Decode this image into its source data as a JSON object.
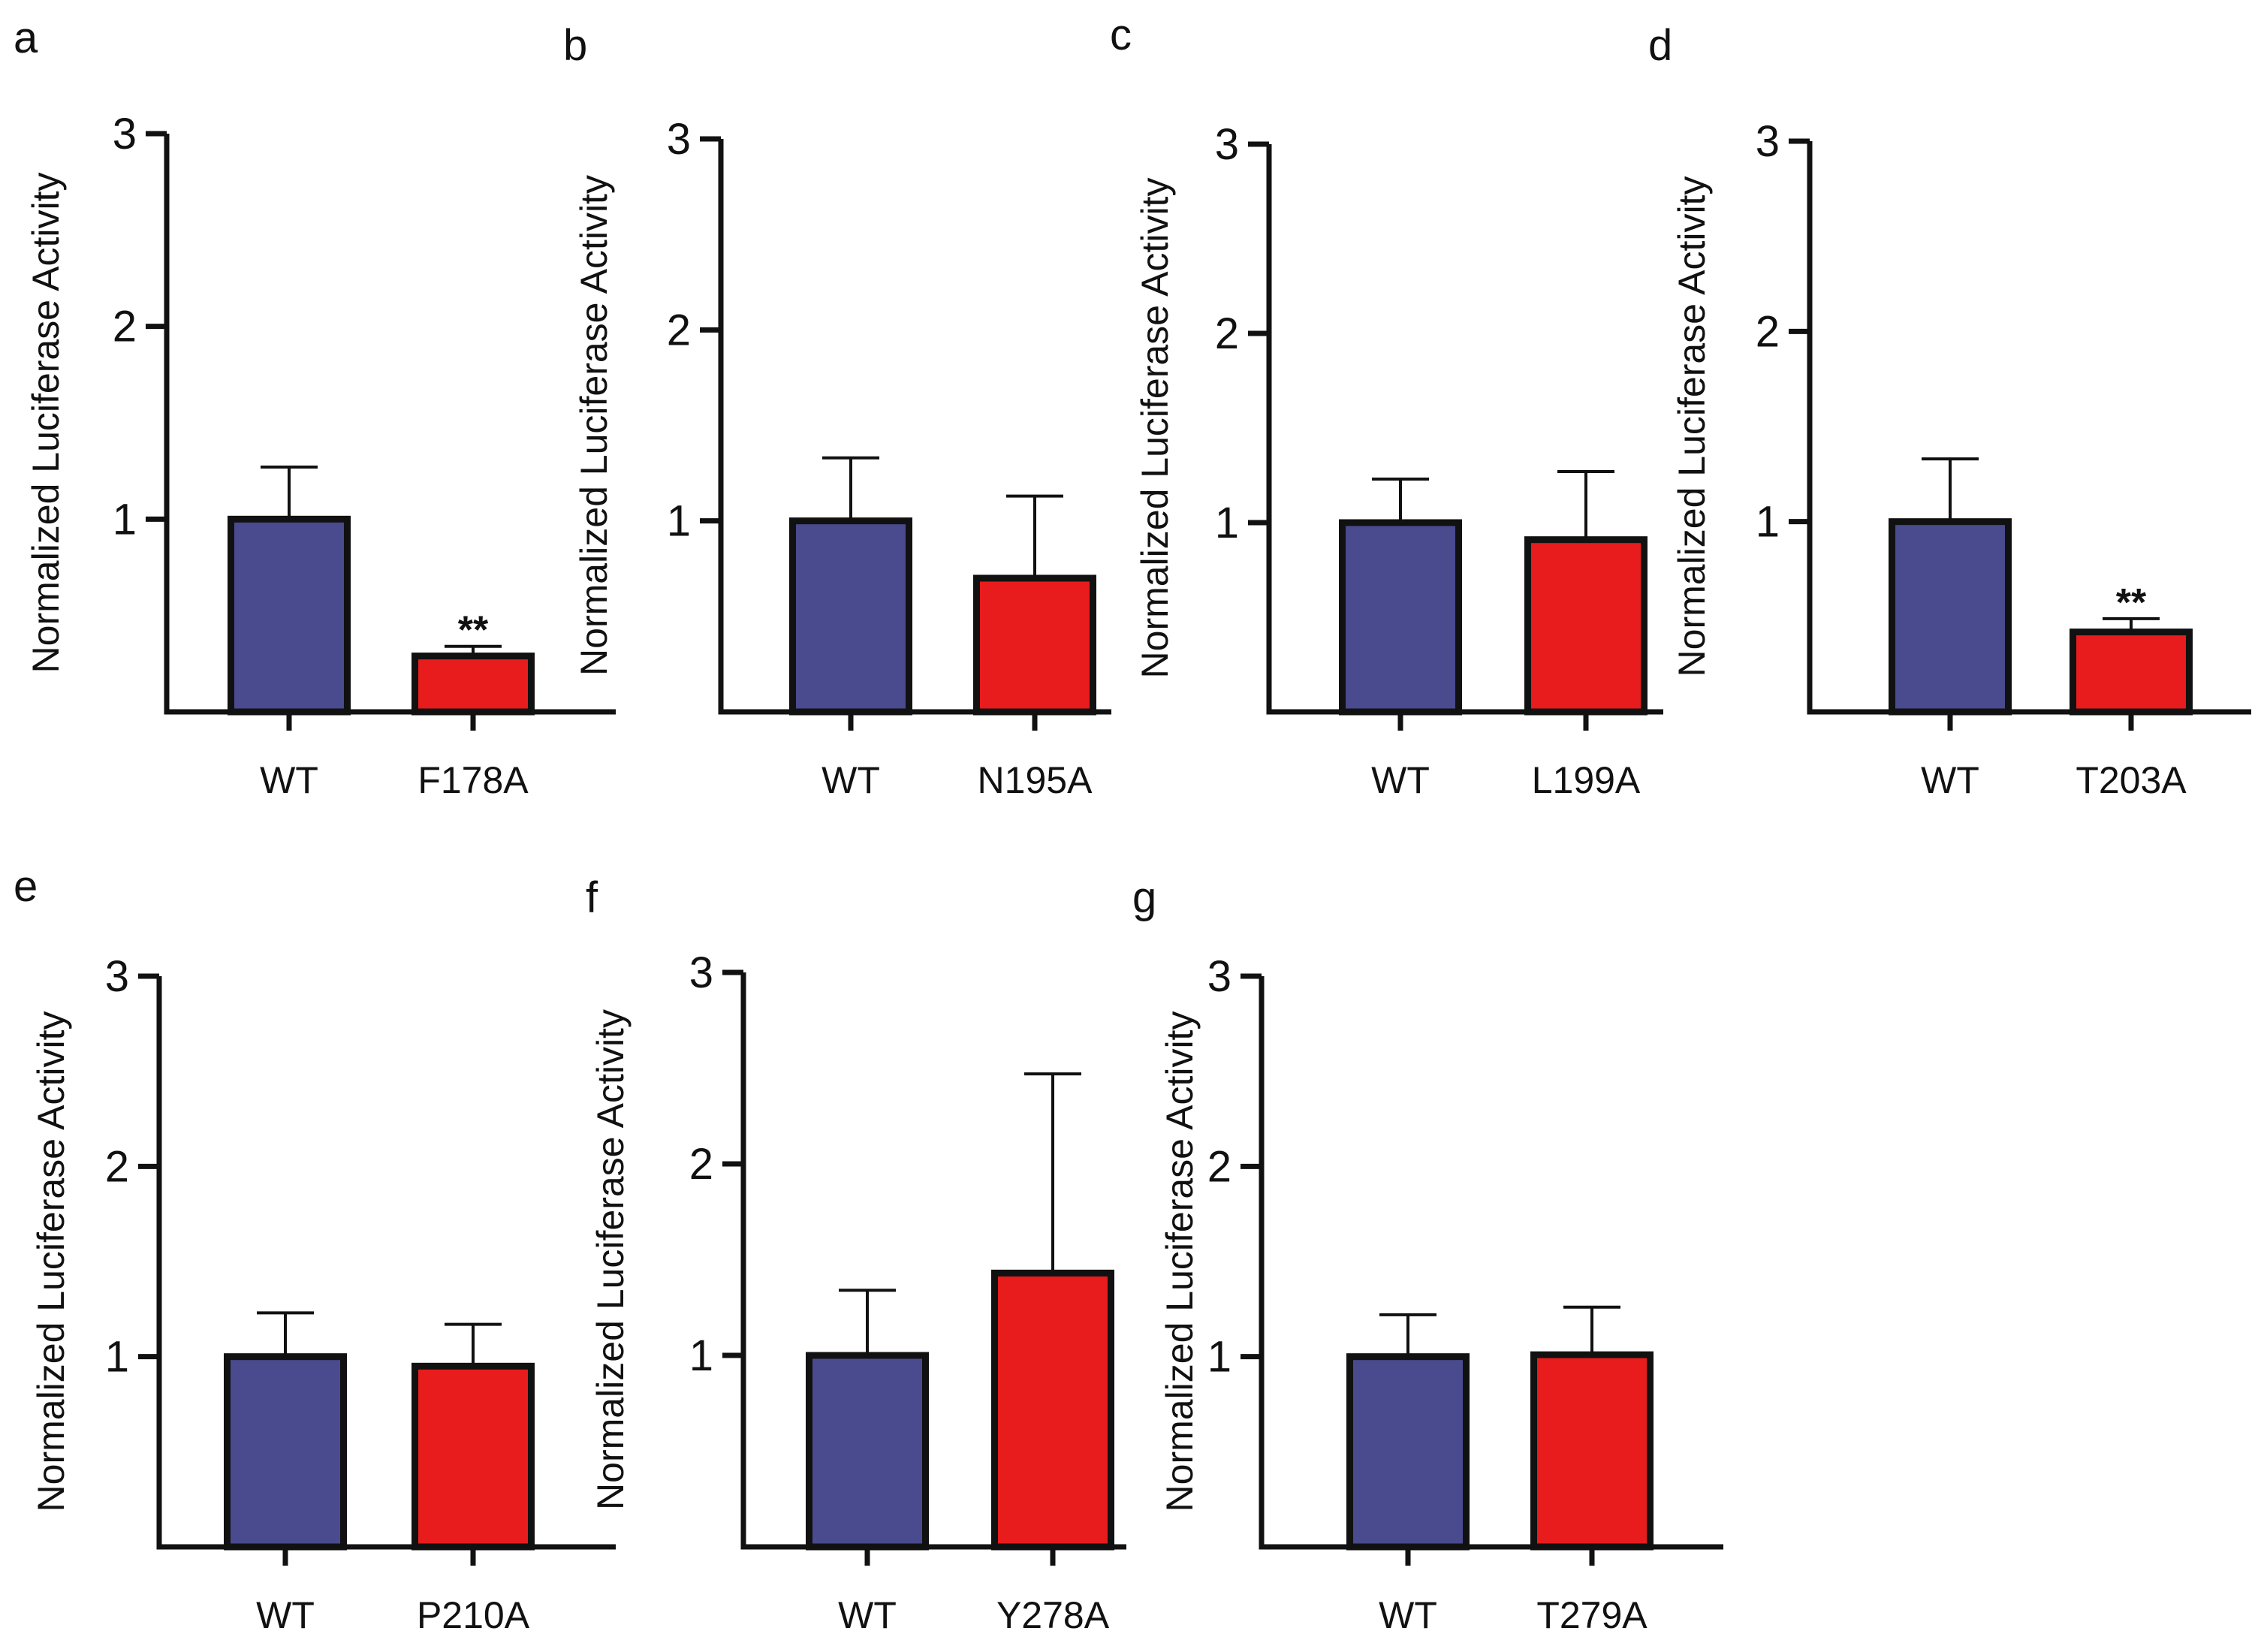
{
  "chart_data": [
    {
      "type": "bar",
      "panel": "a",
      "categories": [
        "WT",
        "F178A"
      ],
      "values": [
        1.0,
        0.29
      ],
      "errors": [
        0.27,
        0.05
      ],
      "significance": [
        "",
        "**"
      ],
      "ylabel": "Normalized Luciferase Activity",
      "yticks": [
        "1",
        "2",
        "3"
      ],
      "ylim": [
        0,
        3
      ],
      "colors": [
        "#4a4a8f",
        "#e81c1c"
      ]
    },
    {
      "type": "bar",
      "panel": "b",
      "categories": [
        "WT",
        "N195A"
      ],
      "values": [
        1.0,
        0.7
      ],
      "errors": [
        0.33,
        0.43
      ],
      "significance": [
        "",
        ""
      ],
      "ylabel": "Normalized Luciferase Activity",
      "yticks": [
        "1",
        "2",
        "3"
      ],
      "ylim": [
        0,
        3
      ],
      "colors": [
        "#4a4a8f",
        "#e81c1c"
      ]
    },
    {
      "type": "bar",
      "panel": "c",
      "categories": [
        "WT",
        "L199A"
      ],
      "values": [
        1.0,
        0.91
      ],
      "errors": [
        0.23,
        0.36
      ],
      "significance": [
        "",
        ""
      ],
      "ylabel": "Normalized Luciferase Activity",
      "yticks": [
        "1",
        "2",
        "3"
      ],
      "ylim": [
        0,
        3
      ],
      "colors": [
        "#4a4a8f",
        "#e81c1c"
      ]
    },
    {
      "type": "bar",
      "panel": "d",
      "categories": [
        "WT",
        "T203A"
      ],
      "values": [
        1.0,
        0.42
      ],
      "errors": [
        0.33,
        0.07
      ],
      "significance": [
        "",
        "**"
      ],
      "ylabel": "Normalized Luciferase Activity",
      "yticks": [
        "1",
        "2",
        "3"
      ],
      "ylim": [
        0,
        3
      ],
      "colors": [
        "#4a4a8f",
        "#e81c1c"
      ]
    },
    {
      "type": "bar",
      "panel": "e",
      "categories": [
        "WT",
        "P210A"
      ],
      "values": [
        1.0,
        0.95
      ],
      "errors": [
        0.23,
        0.22
      ],
      "significance": [
        "",
        ""
      ],
      "ylabel": "Normalized Luciferase Activity",
      "yticks": [
        "1",
        "2",
        "3"
      ],
      "ylim": [
        0,
        3
      ],
      "colors": [
        "#4a4a8f",
        "#e81c1c"
      ]
    },
    {
      "type": "bar",
      "panel": "f",
      "categories": [
        "WT",
        "Y278A"
      ],
      "values": [
        1.0,
        1.43
      ],
      "errors": [
        0.34,
        1.04
      ],
      "significance": [
        "",
        ""
      ],
      "ylabel": "Normalized Luciferase Activity",
      "yticks": [
        "1",
        "2",
        "3"
      ],
      "ylim": [
        0,
        3
      ],
      "colors": [
        "#4a4a8f",
        "#e81c1c"
      ]
    },
    {
      "type": "bar",
      "panel": "g",
      "categories": [
        "WT",
        "T279A"
      ],
      "values": [
        1.0,
        1.01
      ],
      "errors": [
        0.22,
        0.25
      ],
      "significance": [
        "",
        ""
      ],
      "ylabel": "Normalized Luciferase Activity",
      "yticks": [
        "1",
        "2",
        "3"
      ],
      "ylim": [
        0,
        3
      ],
      "colors": [
        "#4a4a8f",
        "#e81c1c"
      ]
    }
  ]
}
